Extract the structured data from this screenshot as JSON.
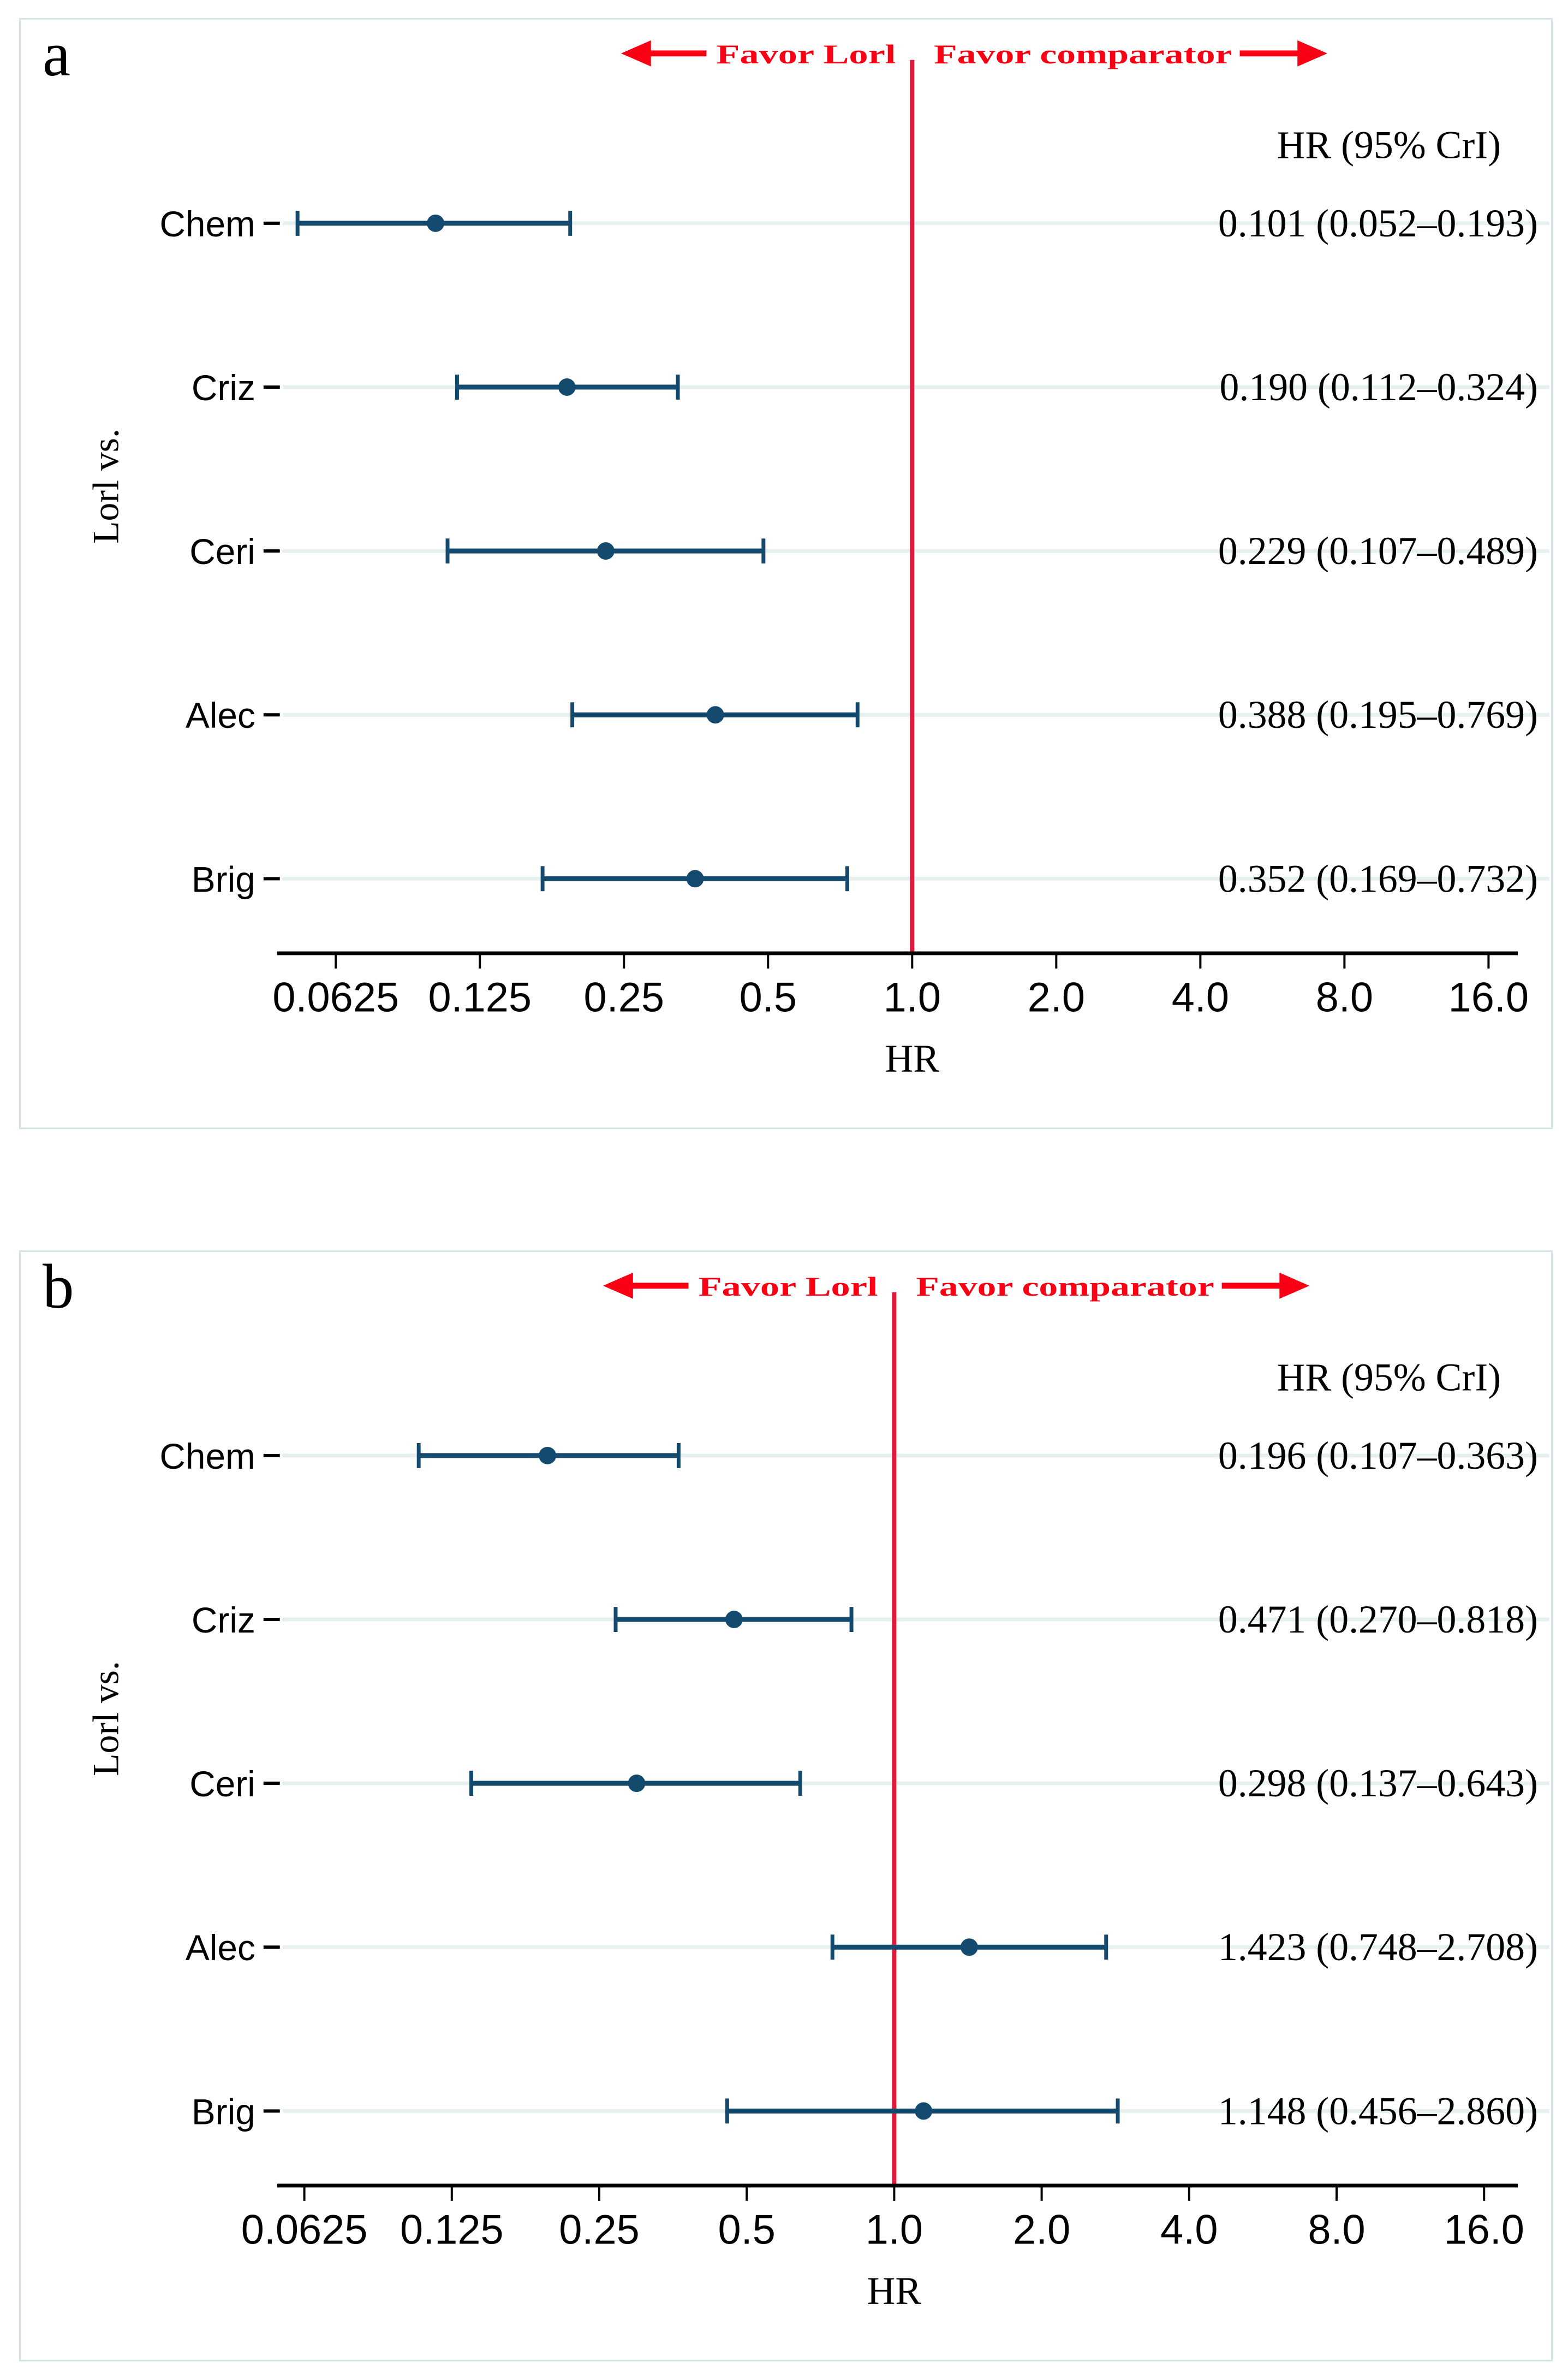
{
  "colors": {
    "marker": "#144a6e",
    "ci_line": "#144a6e",
    "reference_line": "#e11a3c",
    "favor_text": "#fa0014",
    "gridline": "#e6f0f1",
    "panel_border": "#d6e4e8",
    "axis": "#000000",
    "text": "#000000"
  },
  "chart_data": [
    {
      "type": "scatter",
      "subtype": "forest-plot",
      "panel_label": "a",
      "header": {
        "favor_left": "Favor Lorl",
        "favor_right": "Favor comparator"
      },
      "column_header": "HR (95% CrI)",
      "ylabel": "Lorl vs.",
      "xlabel": "HR",
      "x_scale": "log2",
      "x_range": [
        0.0625,
        16
      ],
      "reference_line": 1.0,
      "x_ticks": [
        {
          "value": 0.0625,
          "label": "0.0625"
        },
        {
          "value": 0.125,
          "label": "0.125"
        },
        {
          "value": 0.25,
          "label": "0.25"
        },
        {
          "value": 0.5,
          "label": "0.5"
        },
        {
          "value": 1.0,
          "label": "1.0"
        },
        {
          "value": 2.0,
          "label": "2.0"
        },
        {
          "value": 4.0,
          "label": "4.0"
        },
        {
          "value": 8.0,
          "label": "8.0"
        },
        {
          "value": 16.0,
          "label": "16.0"
        }
      ],
      "rows": [
        {
          "category": "Chem",
          "hr": 0.101,
          "ci_low": 0.052,
          "ci_high": 0.193,
          "label": "0.101 (0.052–0.193)"
        },
        {
          "category": "Criz",
          "hr": 0.19,
          "ci_low": 0.112,
          "ci_high": 0.324,
          "label": "0.190 (0.112–0.324)"
        },
        {
          "category": "Ceri",
          "hr": 0.229,
          "ci_low": 0.107,
          "ci_high": 0.489,
          "label": "0.229 (0.107–0.489)"
        },
        {
          "category": "Alec",
          "hr": 0.388,
          "ci_low": 0.195,
          "ci_high": 0.769,
          "label": "0.388 (0.195–0.769)"
        },
        {
          "category": "Brig",
          "hr": 0.352,
          "ci_low": 0.169,
          "ci_high": 0.732,
          "label": "0.352 (0.169–0.732)"
        }
      ]
    },
    {
      "type": "scatter",
      "subtype": "forest-plot",
      "panel_label": "b",
      "header": {
        "favor_left": "Favor Lorl",
        "favor_right": "Favor comparator"
      },
      "column_header": "HR (95% CrI)",
      "ylabel": "Lorl vs.",
      "xlabel": "HR",
      "x_scale": "log2",
      "x_range": [
        0.0625,
        16
      ],
      "reference_line": 1.0,
      "x_ticks": [
        {
          "value": 0.0625,
          "label": "0.0625"
        },
        {
          "value": 0.125,
          "label": "0.125"
        },
        {
          "value": 0.25,
          "label": "0.25"
        },
        {
          "value": 0.5,
          "label": "0.5"
        },
        {
          "value": 1.0,
          "label": "1.0"
        },
        {
          "value": 2.0,
          "label": "2.0"
        },
        {
          "value": 4.0,
          "label": "4.0"
        },
        {
          "value": 8.0,
          "label": "8.0"
        },
        {
          "value": 16.0,
          "label": "16.0"
        }
      ],
      "rows": [
        {
          "category": "Chem",
          "hr": 0.196,
          "ci_low": 0.107,
          "ci_high": 0.363,
          "label": "0.196 (0.107–0.363)"
        },
        {
          "category": "Criz",
          "hr": 0.471,
          "ci_low": 0.27,
          "ci_high": 0.818,
          "label": "0.471 (0.270–0.818)"
        },
        {
          "category": "Ceri",
          "hr": 0.298,
          "ci_low": 0.137,
          "ci_high": 0.643,
          "label": "0.298 (0.137–0.643)"
        },
        {
          "category": "Alec",
          "hr": 1.423,
          "ci_low": 0.748,
          "ci_high": 2.708,
          "label": "1.423 (0.748–2.708)"
        },
        {
          "category": "Brig",
          "hr": 1.148,
          "ci_low": 0.456,
          "ci_high": 2.86,
          "label": "1.148 (0.456–2.860)"
        }
      ]
    }
  ]
}
